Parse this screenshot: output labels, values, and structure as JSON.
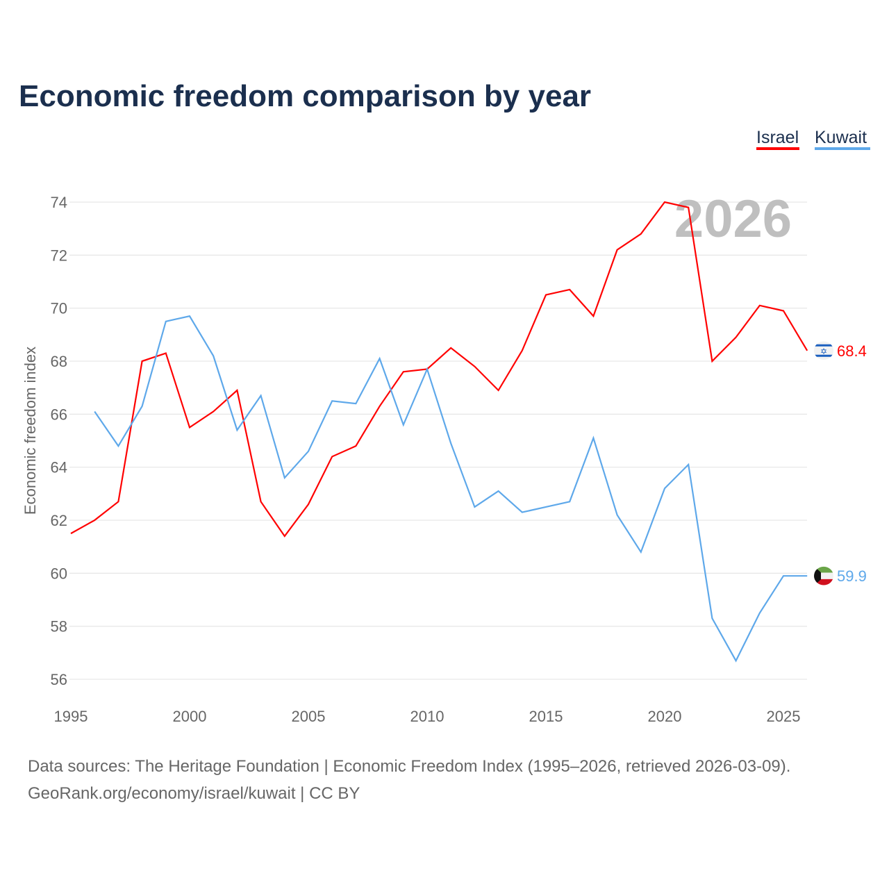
{
  "chart_data": {
    "type": "line",
    "title": "Economic freedom comparison by year",
    "xlabel": "",
    "ylabel": "Economic freedom index",
    "xlim": [
      1995,
      2026
    ],
    "ylim": [
      55.3,
      74.8
    ],
    "x_ticks": [
      1995,
      2000,
      2005,
      2010,
      2015,
      2020,
      2025
    ],
    "y_ticks": [
      56,
      58,
      60,
      62,
      64,
      66,
      68,
      70,
      72,
      74
    ],
    "grid": true,
    "legend_position": "top-right",
    "year_watermark": "2026",
    "series": [
      {
        "name": "Israel",
        "color": "#ff0000",
        "end_label": "68.4",
        "flag": "israel-flag",
        "x": [
          1995,
          1996,
          1997,
          1998,
          1999,
          2000,
          2001,
          2002,
          2003,
          2004,
          2005,
          2006,
          2007,
          2008,
          2009,
          2010,
          2011,
          2012,
          2013,
          2014,
          2015,
          2016,
          2017,
          2018,
          2019,
          2020,
          2021,
          2022,
          2023,
          2024,
          2025,
          2026
        ],
        "values": [
          61.5,
          62.0,
          62.7,
          68.0,
          68.3,
          65.5,
          66.1,
          66.9,
          62.7,
          61.4,
          62.6,
          64.4,
          64.8,
          66.3,
          67.6,
          67.7,
          68.5,
          67.8,
          66.9,
          68.4,
          70.5,
          70.7,
          69.7,
          72.2,
          72.8,
          74.0,
          73.8,
          68.0,
          68.9,
          70.1,
          69.9,
          68.4
        ]
      },
      {
        "name": "Kuwait",
        "color": "#5ea8ea",
        "end_label": "59.9",
        "flag": "kuwait-flag",
        "x": [
          1996,
          1997,
          1998,
          1999,
          2000,
          2001,
          2002,
          2003,
          2004,
          2005,
          2006,
          2007,
          2008,
          2009,
          2010,
          2011,
          2012,
          2013,
          2014,
          2015,
          2016,
          2017,
          2018,
          2019,
          2020,
          2021,
          2022,
          2023,
          2024,
          2025,
          2026
        ],
        "values": [
          66.1,
          64.8,
          66.3,
          69.5,
          69.7,
          68.2,
          65.4,
          66.7,
          63.6,
          64.6,
          66.5,
          66.4,
          68.1,
          65.6,
          67.7,
          64.9,
          62.5,
          63.1,
          62.3,
          62.5,
          62.7,
          65.1,
          62.2,
          60.8,
          63.2,
          64.1,
          58.3,
          56.7,
          58.5,
          59.9,
          59.9
        ]
      }
    ]
  },
  "footer": {
    "line1": "Data sources: The Heritage Foundation | Economic Freedom Index (1995–2026, retrieved 2026-03-09).",
    "line2": "GeoRank.org/economy/israel/kuwait | CC BY"
  }
}
